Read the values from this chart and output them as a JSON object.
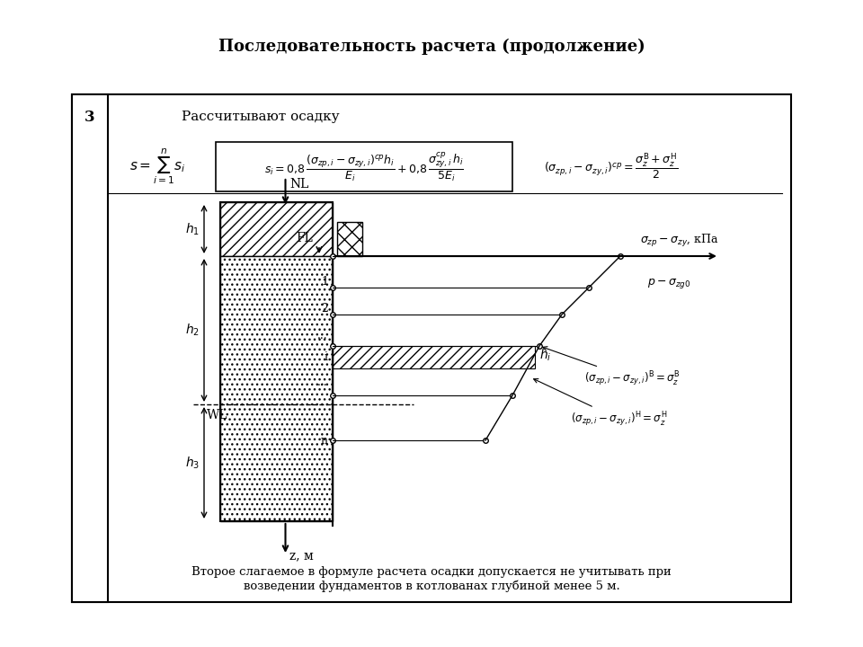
{
  "title": "Последовательность расчета (продолжение)",
  "title_fontsize": 13,
  "bg_color": "#ffffff",
  "border_color": "#000000",
  "step_number": "3",
  "step_text": "Рассчитывают осадку",
  "formula1": "$s = \\sum_{i=1}^{n} s_i$",
  "formula2_box": "$s_i = 0{,}8 \\dfrac{\\left(\\sigma_{zp,i} - \\sigma_{zy,i}\\right)^{cp} h_i}{E_i} + 0{,}8 \\dfrac{\\sigma^{cp}_{zy,i} h_i}{5E_i}$",
  "formula3": "$\\left(\\sigma_{zp,i} - \\sigma_{zy,i}\\right)^{cp} = \\dfrac{\\sigma^{\\text{B}}_z + \\sigma^{\\text{H}}_z}{2}$",
  "note_text": "Второе слагаемое в формуле расчета осадки допускается не учитывать при\nвозведении фундаментов в котлованах глубиной менее 5 м.",
  "label_NL": "NL",
  "label_FL": "FL",
  "label_WL": "WL",
  "label_h1": "$h_1$",
  "label_h2": "$h_2$",
  "label_h3": "$h_3$",
  "label_hi": "$h_i$",
  "label_z": "z, м",
  "label_axis": "$\\sigma_{zp} - \\sigma_{zy}$, кПа",
  "label_p": "$p - \\sigma_{zg0}$",
  "label_sigma_a": "$\\left(\\sigma_{zp,i} - \\sigma_{zy,i}\\right)^{\\text{B}} = \\sigma^{\\text{B}}_z$",
  "label_sigma_n": "$\\left(\\sigma_{zp,i} - \\sigma_{zy,i}\\right)^{\\text{H}} = \\sigma^{\\text{H}}_z$"
}
